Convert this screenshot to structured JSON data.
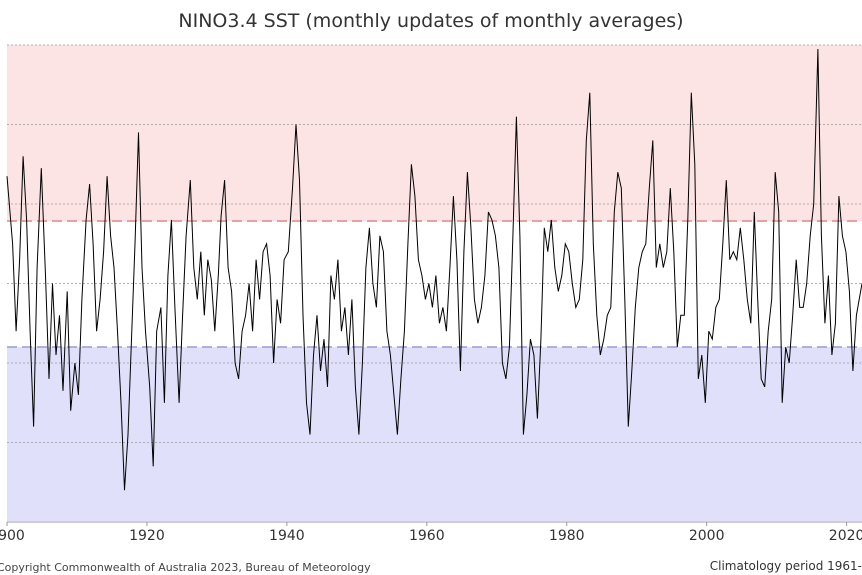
{
  "chart_data": {
    "type": "line",
    "title": "NINO3.4 SST (monthly updates of monthly averages)",
    "xlabel": "",
    "ylabel": "",
    "x_ticks": [
      "1900",
      "1920",
      "1940",
      "1960",
      "1980",
      "2000",
      "2020"
    ],
    "xlim": [
      1900,
      2022.2
    ],
    "ylim": [
      -3,
      3
    ],
    "y_gridlines": [
      -2.0,
      -1.0,
      0.0,
      1.0,
      2.0,
      3.0
    ],
    "thresholds": {
      "el_nino": 0.8,
      "la_nina": -0.8
    },
    "shading": {
      "warm": "#fde4e4",
      "cool": "#e0e0fb",
      "neutral": "#ffffff"
    },
    "colors": {
      "line": "#000000",
      "warm_line": "#e8a0a0",
      "cool_line": "#9a9ad8",
      "grid": "#999999"
    },
    "grid": true,
    "series": [
      {
        "name": "",
        "points": [
          [
            1900.0,
            1.35
          ],
          [
            1900.8,
            0.5
          ],
          [
            1901.3,
            -0.6
          ],
          [
            1901.8,
            0.3
          ],
          [
            1902.3,
            1.6
          ],
          [
            1902.8,
            0.8
          ],
          [
            1903.3,
            -0.6
          ],
          [
            1903.8,
            -1.8
          ],
          [
            1904.3,
            0.2
          ],
          [
            1904.9,
            1.45
          ],
          [
            1905.5,
            0.1
          ],
          [
            1906.0,
            -1.2
          ],
          [
            1906.5,
            0.0
          ],
          [
            1907.0,
            -0.9
          ],
          [
            1907.5,
            -0.4
          ],
          [
            1908.0,
            -1.35
          ],
          [
            1908.6,
            -0.1
          ],
          [
            1909.1,
            -1.6
          ],
          [
            1909.7,
            -1.0
          ],
          [
            1910.2,
            -1.4
          ],
          [
            1910.7,
            -0.2
          ],
          [
            1911.3,
            0.8
          ],
          [
            1911.8,
            1.25
          ],
          [
            1912.3,
            0.5
          ],
          [
            1912.8,
            -0.6
          ],
          [
            1913.3,
            -0.2
          ],
          [
            1913.8,
            0.4
          ],
          [
            1914.3,
            1.35
          ],
          [
            1914.8,
            0.6
          ],
          [
            1915.3,
            0.2
          ],
          [
            1915.8,
            -0.6
          ],
          [
            1916.3,
            -1.5
          ],
          [
            1916.8,
            -2.6
          ],
          [
            1917.3,
            -1.9
          ],
          [
            1917.8,
            -0.7
          ],
          [
            1918.3,
            0.5
          ],
          [
            1918.8,
            1.9
          ],
          [
            1919.3,
            0.2
          ],
          [
            1919.8,
            -0.6
          ],
          [
            1920.4,
            -1.3
          ],
          [
            1920.9,
            -2.3
          ],
          [
            1921.4,
            -0.6
          ],
          [
            1922.0,
            -0.3
          ],
          [
            1922.5,
            -1.5
          ],
          [
            1923.0,
            0.1
          ],
          [
            1923.5,
            0.8
          ],
          [
            1924.0,
            -0.3
          ],
          [
            1924.6,
            -1.5
          ],
          [
            1925.1,
            -0.4
          ],
          [
            1925.6,
            0.6
          ],
          [
            1926.2,
            1.3
          ],
          [
            1926.7,
            0.2
          ],
          [
            1927.2,
            -0.2
          ],
          [
            1927.7,
            0.4
          ],
          [
            1928.2,
            -0.4
          ],
          [
            1928.7,
            0.3
          ],
          [
            1929.2,
            0.05
          ],
          [
            1929.7,
            -0.6
          ],
          [
            1930.2,
            0.1
          ],
          [
            1930.6,
            0.85
          ],
          [
            1931.1,
            1.3
          ],
          [
            1931.6,
            0.2
          ],
          [
            1932.1,
            -0.1
          ],
          [
            1932.6,
            -1.0
          ],
          [
            1933.1,
            -1.2
          ],
          [
            1933.6,
            -0.6
          ],
          [
            1934.1,
            -0.4
          ],
          [
            1934.6,
            0.0
          ],
          [
            1935.1,
            -0.6
          ],
          [
            1935.6,
            0.3
          ],
          [
            1936.1,
            -0.2
          ],
          [
            1936.6,
            0.4
          ],
          [
            1937.1,
            0.5
          ],
          [
            1937.6,
            0.1
          ],
          [
            1938.1,
            -1.0
          ],
          [
            1938.6,
            -0.2
          ],
          [
            1939.1,
            -0.5
          ],
          [
            1939.6,
            0.3
          ],
          [
            1940.2,
            0.4
          ],
          [
            1940.8,
            1.2
          ],
          [
            1941.3,
            2.0
          ],
          [
            1941.8,
            1.3
          ],
          [
            1942.3,
            -0.4
          ],
          [
            1942.8,
            -1.5
          ],
          [
            1943.3,
            -1.9
          ],
          [
            1943.8,
            -0.9
          ],
          [
            1944.3,
            -0.4
          ],
          [
            1944.8,
            -1.1
          ],
          [
            1945.3,
            -0.7
          ],
          [
            1945.8,
            -1.3
          ],
          [
            1946.3,
            0.1
          ],
          [
            1946.8,
            -0.2
          ],
          [
            1947.3,
            0.3
          ],
          [
            1947.8,
            -0.6
          ],
          [
            1948.3,
            -0.3
          ],
          [
            1948.8,
            -0.9
          ],
          [
            1949.3,
            -0.2
          ],
          [
            1949.8,
            -1.3
          ],
          [
            1950.3,
            -1.9
          ],
          [
            1950.8,
            -1.0
          ],
          [
            1951.3,
            0.2
          ],
          [
            1951.8,
            0.7
          ],
          [
            1952.3,
            0.0
          ],
          [
            1952.8,
            -0.3
          ],
          [
            1953.3,
            0.6
          ],
          [
            1953.8,
            0.4
          ],
          [
            1954.3,
            -0.6
          ],
          [
            1954.8,
            -0.9
          ],
          [
            1955.3,
            -1.4
          ],
          [
            1955.8,
            -1.9
          ],
          [
            1956.3,
            -1.2
          ],
          [
            1956.8,
            -0.6
          ],
          [
            1957.3,
            0.5
          ],
          [
            1957.8,
            1.5
          ],
          [
            1958.3,
            1.1
          ],
          [
            1958.8,
            0.3
          ],
          [
            1959.3,
            0.1
          ],
          [
            1959.8,
            -0.2
          ],
          [
            1960.3,
            0.0
          ],
          [
            1960.8,
            -0.3
          ],
          [
            1961.3,
            0.1
          ],
          [
            1961.8,
            -0.5
          ],
          [
            1962.3,
            -0.3
          ],
          [
            1962.8,
            -0.6
          ],
          [
            1963.3,
            0.2
          ],
          [
            1963.8,
            1.1
          ],
          [
            1964.3,
            0.3
          ],
          [
            1964.8,
            -1.1
          ],
          [
            1965.3,
            0.4
          ],
          [
            1965.8,
            1.4
          ],
          [
            1966.3,
            0.7
          ],
          [
            1966.8,
            -0.2
          ],
          [
            1967.3,
            -0.5
          ],
          [
            1967.8,
            -0.3
          ],
          [
            1968.3,
            0.1
          ],
          [
            1968.8,
            0.9
          ],
          [
            1969.3,
            0.8
          ],
          [
            1969.8,
            0.6
          ],
          [
            1970.3,
            0.2
          ],
          [
            1970.8,
            -1.0
          ],
          [
            1971.3,
            -1.2
          ],
          [
            1971.8,
            -0.8
          ],
          [
            1972.3,
            0.6
          ],
          [
            1972.8,
            2.1
          ],
          [
            1973.3,
            0.6
          ],
          [
            1973.8,
            -1.9
          ],
          [
            1974.3,
            -1.4
          ],
          [
            1974.8,
            -0.7
          ],
          [
            1975.3,
            -0.9
          ],
          [
            1975.8,
            -1.7
          ],
          [
            1976.3,
            -0.7
          ],
          [
            1976.8,
            0.7
          ],
          [
            1977.3,
            0.4
          ],
          [
            1977.8,
            0.8
          ],
          [
            1978.3,
            0.2
          ],
          [
            1978.8,
            -0.1
          ],
          [
            1979.3,
            0.1
          ],
          [
            1979.8,
            0.5
          ],
          [
            1980.3,
            0.4
          ],
          [
            1980.8,
            0.0
          ],
          [
            1981.3,
            -0.3
          ],
          [
            1981.8,
            -0.2
          ],
          [
            1982.3,
            0.3
          ],
          [
            1982.8,
            1.8
          ],
          [
            1983.3,
            2.4
          ],
          [
            1983.8,
            0.5
          ],
          [
            1984.3,
            -0.4
          ],
          [
            1984.8,
            -0.9
          ],
          [
            1985.3,
            -0.7
          ],
          [
            1985.8,
            -0.4
          ],
          [
            1986.3,
            -0.3
          ],
          [
            1986.8,
            0.9
          ],
          [
            1987.3,
            1.4
          ],
          [
            1987.8,
            1.2
          ],
          [
            1988.3,
            -0.2
          ],
          [
            1988.8,
            -1.8
          ],
          [
            1989.3,
            -1.1
          ],
          [
            1989.8,
            -0.3
          ],
          [
            1990.3,
            0.2
          ],
          [
            1990.8,
            0.4
          ],
          [
            1991.3,
            0.5
          ],
          [
            1991.8,
            1.2
          ],
          [
            1992.3,
            1.8
          ],
          [
            1992.8,
            0.2
          ],
          [
            1993.3,
            0.5
          ],
          [
            1993.8,
            0.2
          ],
          [
            1994.3,
            0.4
          ],
          [
            1994.8,
            1.2
          ],
          [
            1995.3,
            0.4
          ],
          [
            1995.8,
            -0.8
          ],
          [
            1996.3,
            -0.4
          ],
          [
            1996.8,
            -0.4
          ],
          [
            1997.3,
            0.8
          ],
          [
            1997.8,
            2.4
          ],
          [
            1998.3,
            1.5
          ],
          [
            1998.8,
            -1.2
          ],
          [
            1999.3,
            -0.9
          ],
          [
            1999.8,
            -1.5
          ],
          [
            2000.3,
            -0.6
          ],
          [
            2000.8,
            -0.7
          ],
          [
            2001.3,
            -0.3
          ],
          [
            2001.8,
            -0.2
          ],
          [
            2002.3,
            0.5
          ],
          [
            2002.8,
            1.3
          ],
          [
            2003.3,
            0.3
          ],
          [
            2003.8,
            0.4
          ],
          [
            2004.3,
            0.3
          ],
          [
            2004.8,
            0.7
          ],
          [
            2005.3,
            0.3
          ],
          [
            2005.8,
            -0.2
          ],
          [
            2006.3,
            -0.5
          ],
          [
            2006.8,
            0.9
          ],
          [
            2007.3,
            -0.2
          ],
          [
            2007.8,
            -1.2
          ],
          [
            2008.3,
            -1.3
          ],
          [
            2008.8,
            -0.6
          ],
          [
            2009.3,
            -0.2
          ],
          [
            2009.8,
            1.4
          ],
          [
            2010.3,
            0.9
          ],
          [
            2010.8,
            -1.5
          ],
          [
            2011.3,
            -0.8
          ],
          [
            2011.8,
            -1.0
          ],
          [
            2012.3,
            -0.4
          ],
          [
            2012.8,
            0.3
          ],
          [
            2013.3,
            -0.3
          ],
          [
            2013.8,
            -0.3
          ],
          [
            2014.3,
            0.0
          ],
          [
            2014.8,
            0.6
          ],
          [
            2015.3,
            1.0
          ],
          [
            2015.9,
            2.95
          ],
          [
            2016.4,
            0.6
          ],
          [
            2016.9,
            -0.5
          ],
          [
            2017.4,
            0.1
          ],
          [
            2017.9,
            -0.9
          ],
          [
            2018.4,
            -0.5
          ],
          [
            2018.9,
            1.1
          ],
          [
            2019.4,
            0.6
          ],
          [
            2019.9,
            0.4
          ],
          [
            2020.4,
            -0.1
          ],
          [
            2020.9,
            -1.1
          ],
          [
            2021.4,
            -0.4
          ],
          [
            2022.2,
            0.0
          ]
        ]
      }
    ]
  },
  "footer": {
    "copyright": "Copyright Commonwealth of Australia 2023, Bureau of Meteorology",
    "climatology": "Climatology period 1961-"
  }
}
